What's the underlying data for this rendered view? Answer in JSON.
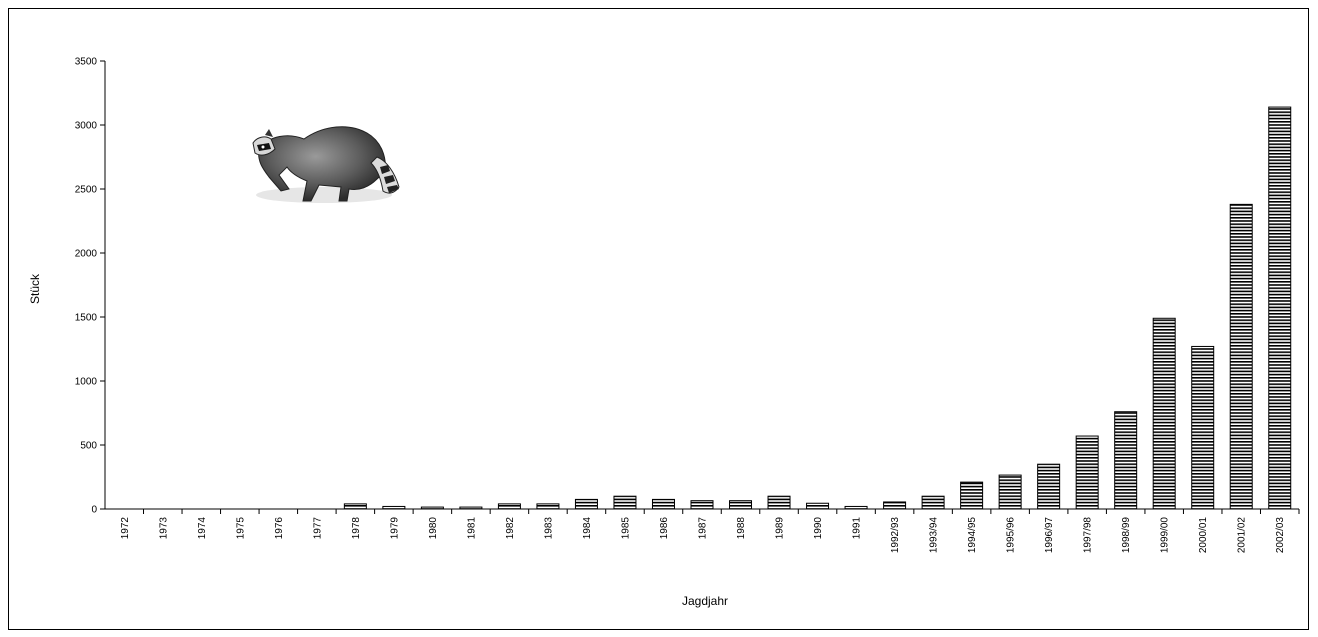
{
  "chart_data": {
    "type": "bar",
    "ylabel": "Stück",
    "xlabel": "Jagdjahr",
    "ylim": [
      0,
      3500
    ],
    "yticks": [
      0,
      500,
      1000,
      1500,
      2000,
      2500,
      3000,
      3500
    ],
    "ytick_labels": [
      "0",
      "500",
      "1000",
      "1500",
      "2000",
      "2500",
      "3000",
      "3500"
    ],
    "grid": false,
    "legend": "none",
    "categories": [
      "1972",
      "1973",
      "1974",
      "1975",
      "1976",
      "1977",
      "1978",
      "1979",
      "1980",
      "1981",
      "1982",
      "1983",
      "1984",
      "1985",
      "1986",
      "1987",
      "1988",
      "1989",
      "1990",
      "1991",
      "1992/93",
      "1993/94",
      "1994/95",
      "1995/96",
      "1996/97",
      "1997/98",
      "1998/99",
      "1999/00",
      "2000/01",
      "2001/02",
      "2002/03"
    ],
    "values": [
      3,
      3,
      3,
      3,
      3,
      3,
      40,
      20,
      15,
      15,
      40,
      40,
      75,
      100,
      75,
      65,
      65,
      100,
      45,
      20,
      55,
      100,
      210,
      265,
      350,
      570,
      760,
      1490,
      1270,
      2380,
      3140
    ],
    "bar_fill": "#ffffff",
    "bar_stripe_color": "#000000",
    "image": "raccoon-illustration"
  }
}
